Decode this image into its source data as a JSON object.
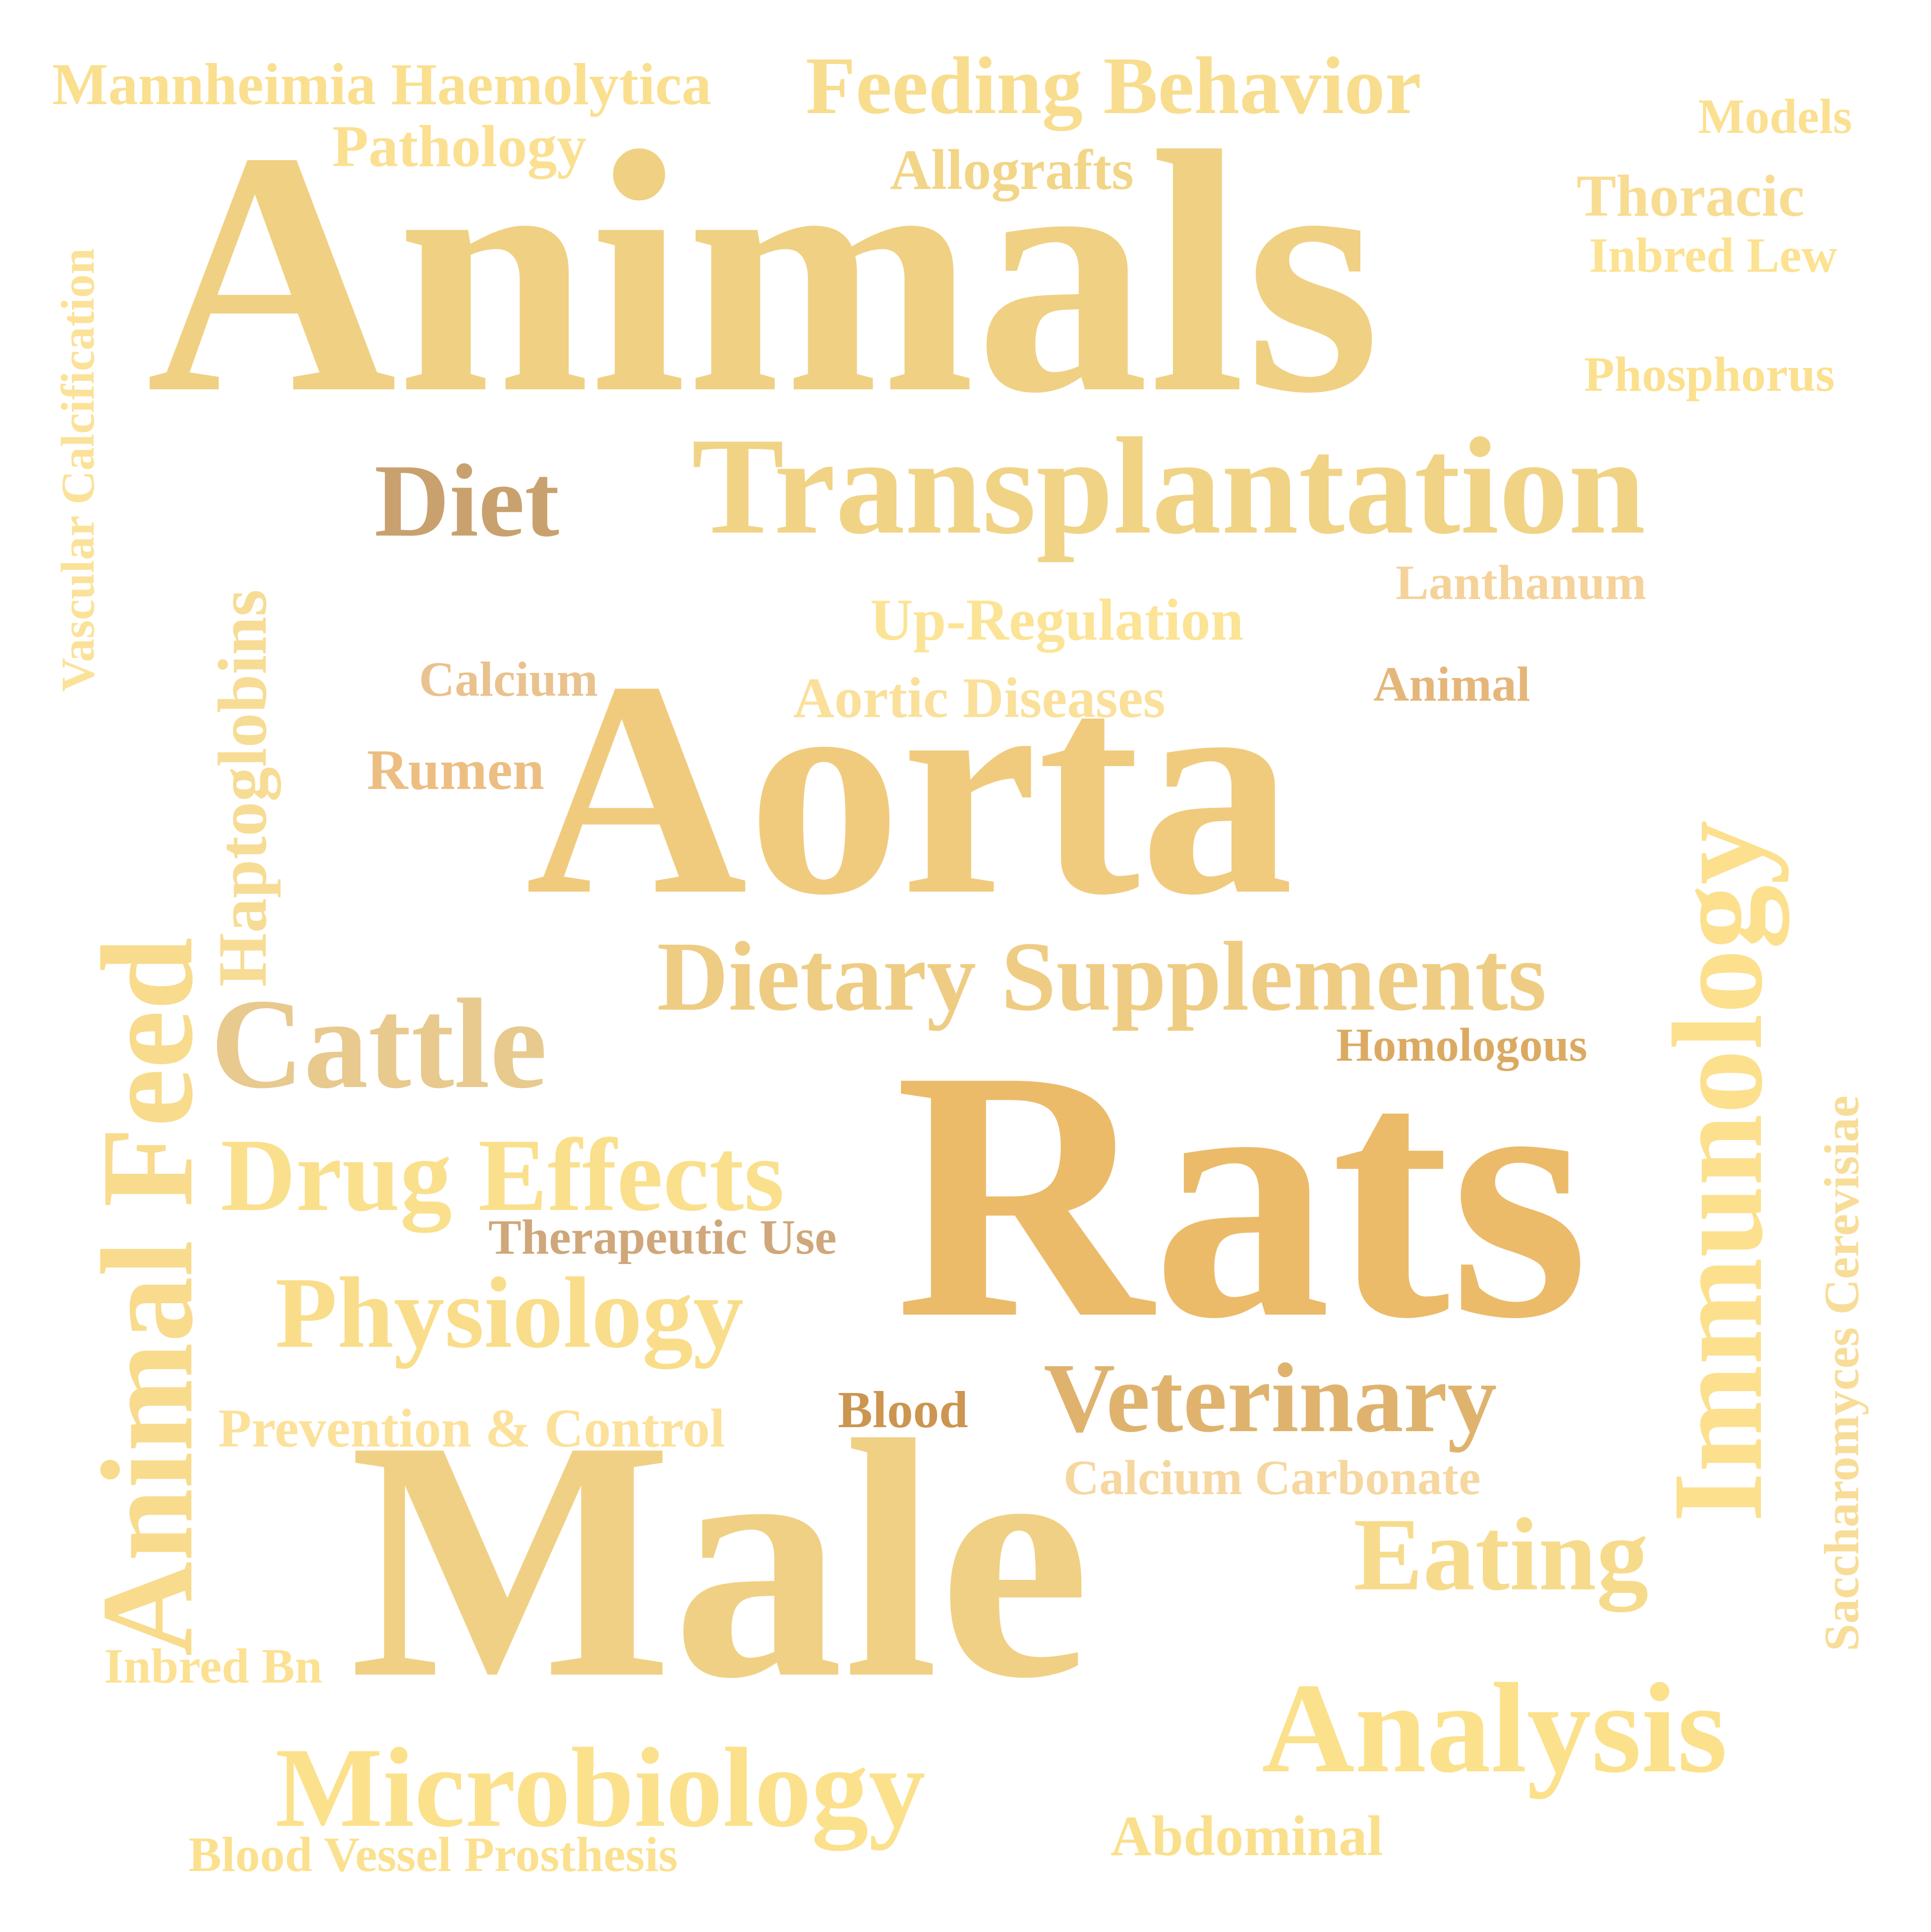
{
  "words": [
    {
      "id": "animals",
      "text": "Animals",
      "color": "#F0D083"
    },
    {
      "id": "rats",
      "text": "Rats",
      "color": "#EBBB6A"
    },
    {
      "id": "aorta",
      "text": "Aorta",
      "color": "#F0CB7E"
    },
    {
      "id": "male",
      "text": "Male",
      "color": "#F0D084"
    },
    {
      "id": "transplantation",
      "text": "Transplantation",
      "color": "#F1D386"
    },
    {
      "id": "diet",
      "text": "Diet",
      "color": "#C9A16E"
    },
    {
      "id": "dietary_supplements",
      "text": "Dietary Supplements",
      "color": "#EFCC83"
    },
    {
      "id": "cattle",
      "text": "Cattle",
      "color": "#E8C98E"
    },
    {
      "id": "drug_effects",
      "text": "Drug Effects",
      "color": "#FAE08D"
    },
    {
      "id": "physiology",
      "text": "Physiology",
      "color": "#F9DD8A"
    },
    {
      "id": "veterinary",
      "text": "Veterinary",
      "color": "#DFB36E"
    },
    {
      "id": "eating",
      "text": "Eating",
      "color": "#F7DB8C"
    },
    {
      "id": "analysis",
      "text": "Analysis",
      "color": "#FCE18C"
    },
    {
      "id": "microbiology",
      "text": "Microbiology",
      "color": "#FCE18C"
    },
    {
      "id": "feeding_behavior",
      "text": "Feeding Behavior",
      "color": "#F8DD8E"
    },
    {
      "id": "mannheimia",
      "text": "Mannheimia Haemolytica",
      "color": "#FADF8F"
    },
    {
      "id": "pathology",
      "text": "Pathology",
      "color": "#FBE091"
    },
    {
      "id": "allografts",
      "text": "Allografts",
      "color": "#F2D587"
    },
    {
      "id": "models",
      "text": "Models",
      "color": "#FBE091"
    },
    {
      "id": "thoracic",
      "text": "Thoracic",
      "color": "#F7DC92"
    },
    {
      "id": "inbred_lew",
      "text": "Inbred Lew",
      "color": "#FCE291"
    },
    {
      "id": "phosphorus",
      "text": "Phosphorus",
      "color": "#FBE08E"
    },
    {
      "id": "lanthanum",
      "text": "Lanthanum",
      "color": "#F5D29A"
    },
    {
      "id": "up_regulation",
      "text": "Up-Regulation",
      "color": "#FCE496"
    },
    {
      "id": "calcium",
      "text": "Calcium",
      "color": "#E9C28E"
    },
    {
      "id": "aortic_diseases",
      "text": "Aortic Diseases",
      "color": "#FAE09A"
    },
    {
      "id": "animal",
      "text": "Animal",
      "color": "#E5B67A"
    },
    {
      "id": "rumen",
      "text": "Rumen",
      "color": "#EDBE82"
    },
    {
      "id": "homologous",
      "text": "Homologous",
      "color": "#DBAA62"
    },
    {
      "id": "therapeutic_use",
      "text": "Therapeutic Use",
      "color": "#CFA77A"
    },
    {
      "id": "blood",
      "text": "Blood",
      "color": "#CC9550"
    },
    {
      "id": "prevention_control",
      "text": "Prevention & Control",
      "color": "#FCE19A"
    },
    {
      "id": "calcium_carbonate",
      "text": "Calcium Carbonate",
      "color": "#F6D7A0"
    },
    {
      "id": "inbred_bn",
      "text": "Inbred Bn",
      "color": "#FCE193"
    },
    {
      "id": "abdominal",
      "text": "Abdominal",
      "color": "#FAE08C"
    },
    {
      "id": "blood_vessel_prosthesis",
      "text": "Blood Vessel Prosthesis",
      "color": "#FBE18F"
    },
    {
      "id": "vascular_calcification",
      "text": "Vascular Calcification",
      "color": "#FBE298"
    },
    {
      "id": "haptoglobins",
      "text": "Haptoglobins",
      "color": "#F7DC95"
    },
    {
      "id": "animal_feed",
      "text": "Animal Feed",
      "color": "#F8DB8D"
    },
    {
      "id": "immunology",
      "text": "Immunology",
      "color": "#FCE08E"
    },
    {
      "id": "saccharomyces",
      "text": "Saccharomyces Cerevisiae",
      "color": "#F8DD98"
    }
  ]
}
